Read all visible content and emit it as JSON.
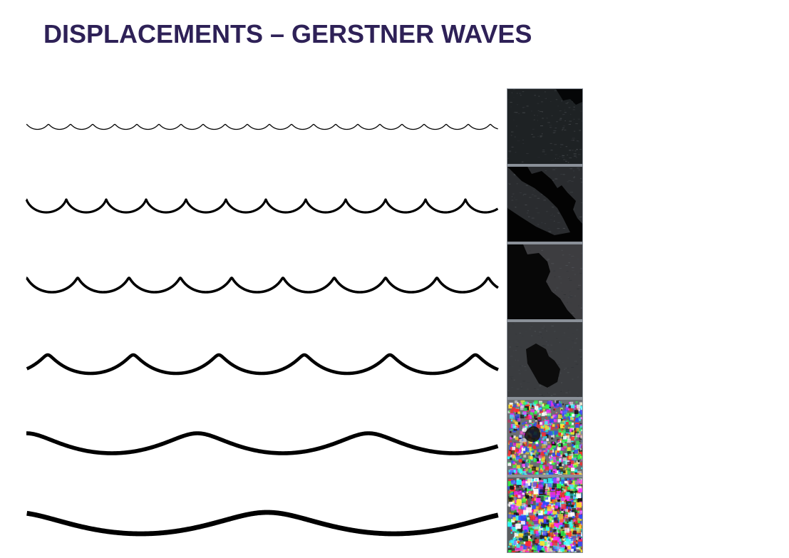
{
  "slide": {
    "title": "DISPLACEMENTS – GERSTNER WAVES"
  },
  "colors": {
    "title": "#2e2157",
    "wave_stroke": "#000000",
    "background": "#ffffff"
  },
  "diagram": {
    "wave_count": 6,
    "thumbnail_count": 6,
    "thumbnail_style": [
      "dark-water",
      "dark-water",
      "dark-water",
      "dark-water",
      "noisy-rgb",
      "noisy-rgb"
    ]
  }
}
